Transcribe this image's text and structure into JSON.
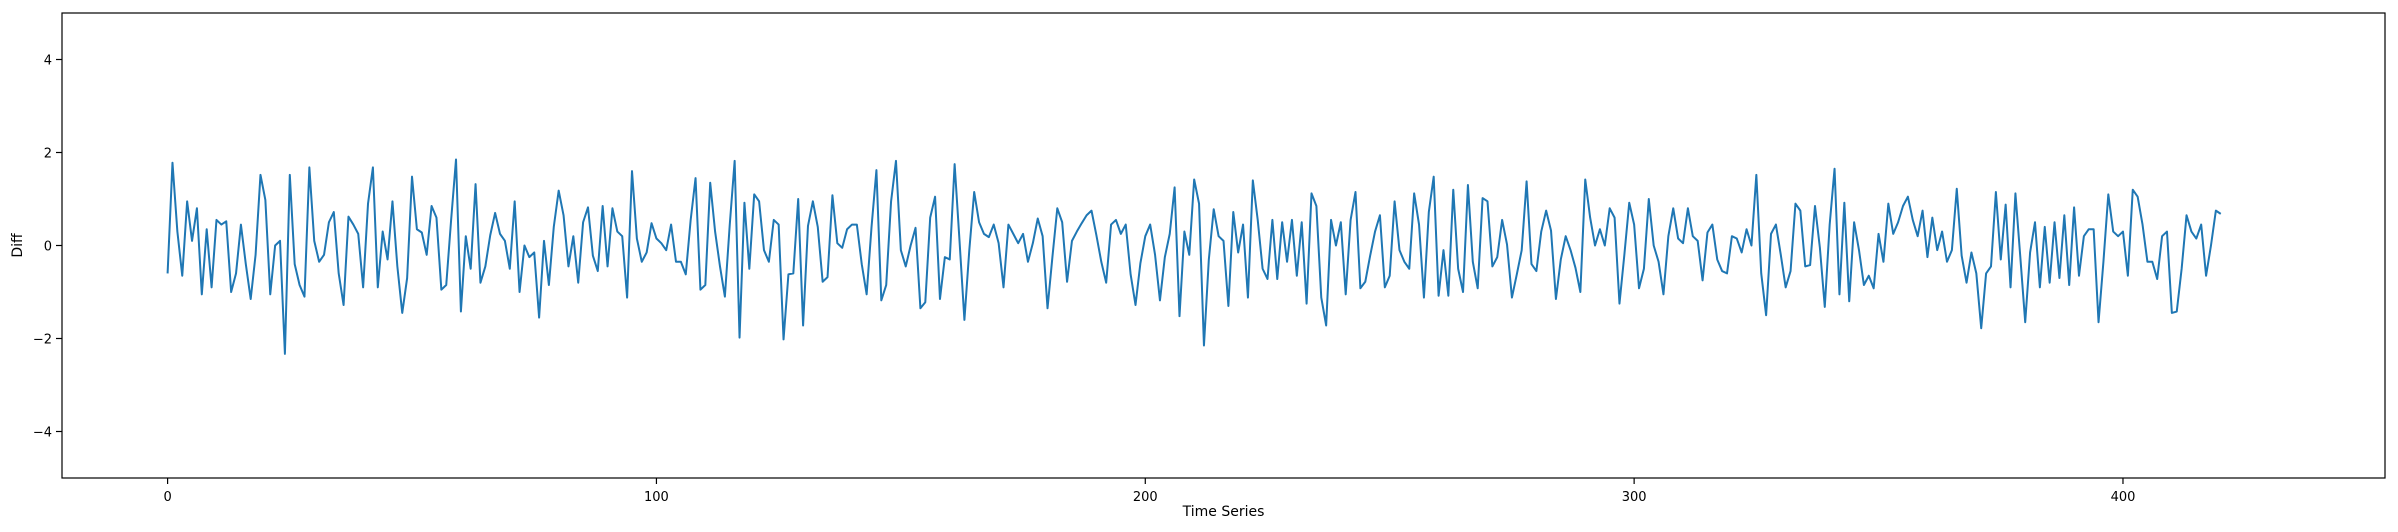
{
  "chart_data": {
    "type": "line",
    "title": "",
    "xlabel": "Time Series",
    "ylabel": "Diff",
    "xlim": [
      -21.6,
      453.6
    ],
    "ylim": [
      -5,
      5
    ],
    "xticks": [
      0,
      100,
      200,
      300,
      400
    ],
    "yticks": [
      -4,
      -2,
      0,
      2,
      4
    ],
    "grid": false,
    "legend": "none",
    "series": [
      {
        "color": "#1f77b4",
        "x_start": 0,
        "x_step": 1,
        "values": [
          -0.6,
          1.78,
          0.3,
          -0.65,
          0.95,
          0.1,
          0.8,
          -1.05,
          0.35,
          -0.9,
          0.55,
          0.45,
          0.52,
          -1.0,
          -0.6,
          0.45,
          -0.4,
          -1.15,
          -0.2,
          1.52,
          0.98,
          -1.05,
          0.0,
          0.1,
          -2.33,
          1.52,
          -0.4,
          -0.85,
          -1.1,
          1.68,
          0.1,
          -0.35,
          -0.2,
          0.5,
          0.72,
          -0.6,
          -1.28,
          0.62,
          0.45,
          0.25,
          -0.9,
          0.9,
          1.68,
          -0.9,
          0.3,
          -0.3,
          0.95,
          -0.45,
          -1.45,
          -0.7,
          1.48,
          0.35,
          0.28,
          -0.2,
          0.85,
          0.6,
          -0.95,
          -0.85,
          0.55,
          1.85,
          -1.42,
          0.2,
          -0.5,
          1.32,
          -0.8,
          -0.45,
          0.22,
          0.7,
          0.25,
          0.1,
          -0.5,
          0.95,
          -1.0,
          0.0,
          -0.25,
          -0.15,
          -1.55,
          0.1,
          -0.85,
          0.4,
          1.18,
          0.65,
          -0.45,
          0.2,
          -0.8,
          0.5,
          0.82,
          -0.22,
          -0.55,
          0.85,
          -0.45,
          0.8,
          0.3,
          0.2,
          -1.12,
          1.6,
          0.15,
          -0.35,
          -0.15,
          0.48,
          0.15,
          0.05,
          -0.1,
          0.45,
          -0.35,
          -0.35,
          -0.62,
          0.55,
          1.45,
          -0.95,
          -0.85,
          1.35,
          0.3,
          -0.45,
          -1.1,
          0.45,
          1.82,
          -1.98,
          0.92,
          -0.5,
          1.1,
          0.95,
          -0.1,
          -0.35,
          0.55,
          0.45,
          -2.02,
          -0.62,
          -0.6,
          1.0,
          -1.72,
          0.42,
          0.95,
          0.4,
          -0.78,
          -0.68,
          1.08,
          0.05,
          -0.05,
          0.35,
          0.45,
          0.45,
          -0.4,
          -1.05,
          0.4,
          1.62,
          -1.18,
          -0.85,
          0.95,
          1.82,
          -0.1,
          -0.45,
          0.0,
          0.38,
          -1.35,
          -1.22,
          0.6,
          1.05,
          -1.15,
          -0.25,
          -0.3,
          1.75,
          0.1,
          -1.6,
          -0.1,
          1.15,
          0.5,
          0.25,
          0.18,
          0.45,
          0.05,
          -0.9,
          0.45,
          0.25,
          0.05,
          0.25,
          -0.35,
          0.05,
          0.58,
          0.2,
          -1.35,
          -0.25,
          0.8,
          0.5,
          -0.78,
          0.1,
          0.3,
          0.48,
          0.65,
          0.75,
          0.22,
          -0.35,
          -0.8,
          0.45,
          0.55,
          0.25,
          0.45,
          -0.62,
          -1.28,
          -0.38,
          0.2,
          0.45,
          -0.2,
          -1.18,
          -0.25,
          0.25,
          1.25,
          -1.52,
          0.3,
          -0.2,
          1.42,
          0.9,
          -2.15,
          -0.3,
          0.78,
          0.2,
          0.1,
          -1.3,
          0.72,
          -0.15,
          0.45,
          -1.12,
          1.4,
          0.55,
          -0.5,
          -0.72,
          0.55,
          -0.72,
          0.5,
          -0.35,
          0.55,
          -0.65,
          0.5,
          -1.25,
          1.12,
          0.85,
          -1.12,
          -1.72,
          0.55,
          0.0,
          0.5,
          -1.05,
          0.55,
          1.15,
          -0.92,
          -0.78,
          -0.22,
          0.3,
          0.65,
          -0.9,
          -0.65,
          0.95,
          -0.1,
          -0.35,
          -0.5,
          1.12,
          0.45,
          -1.12,
          0.72,
          1.48,
          -1.08,
          -0.1,
          -1.08,
          1.2,
          -0.5,
          -1.0,
          1.3,
          -0.35,
          -0.92,
          1.02,
          0.95,
          -0.45,
          -0.25,
          0.55,
          0.02,
          -1.12,
          -0.62,
          -0.1,
          1.38,
          -0.4,
          -0.55,
          0.3,
          0.75,
          0.32,
          -1.15,
          -0.3,
          0.2,
          -0.1,
          -0.48,
          -1.0,
          1.42,
          0.6,
          0.0,
          0.35,
          0.0,
          0.8,
          0.6,
          -1.25,
          -0.2,
          0.92,
          0.45,
          -0.92,
          -0.5,
          1.0,
          0.0,
          -0.35,
          -1.05,
          0.2,
          0.8,
          0.15,
          0.05,
          0.8,
          0.2,
          0.1,
          -0.75,
          0.28,
          0.45,
          -0.3,
          -0.55,
          -0.6,
          0.2,
          0.15,
          -0.15,
          0.35,
          0.0,
          1.52,
          -0.6,
          -1.5,
          0.25,
          0.45,
          -0.2,
          -0.9,
          -0.55,
          0.9,
          0.75,
          -0.45,
          -0.42,
          0.85,
          -0.05,
          -1.32,
          0.45,
          1.65,
          -1.05,
          0.92,
          -1.2,
          0.5,
          -0.1,
          -0.85,
          -0.65,
          -0.92,
          0.25,
          -0.35,
          0.9,
          0.25,
          0.5,
          0.85,
          1.05,
          0.55,
          0.2,
          0.75,
          -0.25,
          0.6,
          -0.1,
          0.3,
          -0.35,
          -0.1,
          1.22,
          -0.22,
          -0.8,
          -0.15,
          -0.6,
          -1.78,
          -0.6,
          -0.45,
          1.15,
          -0.3,
          0.88,
          -0.9,
          1.12,
          -0.25,
          -1.65,
          -0.15,
          0.5,
          -0.9,
          0.4,
          -0.8,
          0.5,
          -0.7,
          0.65,
          -0.85,
          0.82,
          -0.65,
          0.2,
          0.35,
          0.35,
          -1.65,
          -0.35,
          1.1,
          0.3,
          0.2,
          0.3,
          -0.65,
          1.2,
          1.05,
          0.45,
          -0.35,
          -0.35,
          -0.72,
          0.2,
          0.3,
          -1.45,
          -1.42,
          -0.5,
          0.65,
          0.3,
          0.15,
          0.45,
          -0.65,
          0.0,
          0.75,
          0.68
        ]
      }
    ]
  }
}
